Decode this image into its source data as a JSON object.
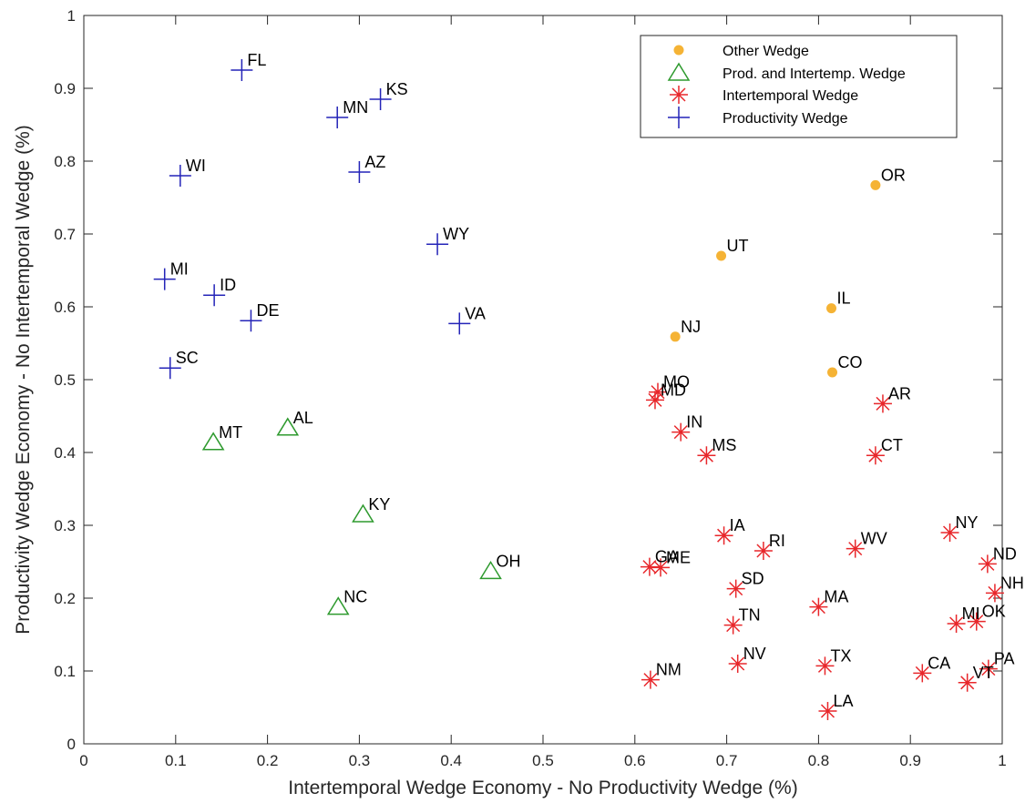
{
  "chart_data": {
    "type": "scatter",
    "xlabel": "Intertemporal Wedge Economy - No Productivity Wedge (%)",
    "ylabel": "Productivity Wedge Economy - No Intertemporal Wedge   (%)",
    "xlim": [
      0,
      1
    ],
    "ylim": [
      0,
      1
    ],
    "xticks": [
      0,
      0.1,
      0.2,
      0.3,
      0.4,
      0.5,
      0.6,
      0.7,
      0.8,
      0.9,
      1
    ],
    "yticks": [
      0,
      0.1,
      0.2,
      0.3,
      0.4,
      0.5,
      0.6,
      0.7,
      0.8,
      0.9,
      1
    ],
    "x_tick_labels": [
      "0",
      "0.1",
      "0.2",
      "0.3",
      "0.4",
      "0.5",
      "0.6",
      "0.7",
      "0.8",
      "0.9",
      "1"
    ],
    "y_tick_labels": [
      "0",
      "0.1",
      "0.2",
      "0.3",
      "0.4",
      "0.5",
      "0.6",
      "0.7",
      "0.8",
      "0.9",
      "1"
    ],
    "grid": false,
    "legend_position": "top-right",
    "series": [
      {
        "name": "Other Wedge",
        "marker": "dot",
        "color": "#f5b335",
        "points": [
          {
            "label": "OR",
            "x": 0.862,
            "y": 0.767
          },
          {
            "label": "UT",
            "x": 0.694,
            "y": 0.67
          },
          {
            "label": "IL",
            "x": 0.814,
            "y": 0.598
          },
          {
            "label": "NJ",
            "x": 0.644,
            "y": 0.559
          },
          {
            "label": "CO",
            "x": 0.815,
            "y": 0.51
          }
        ]
      },
      {
        "name": "Prod. and Intertemp. Wedge",
        "marker": "triangle",
        "color": "#2e9a2e",
        "points": [
          {
            "label": "AL",
            "x": 0.222,
            "y": 0.434
          },
          {
            "label": "MT",
            "x": 0.141,
            "y": 0.414
          },
          {
            "label": "KY",
            "x": 0.304,
            "y": 0.315
          },
          {
            "label": "OH",
            "x": 0.443,
            "y": 0.237
          },
          {
            "label": "NC",
            "x": 0.277,
            "y": 0.188
          }
        ]
      },
      {
        "name": "Intertemporal Wedge",
        "marker": "asterisk",
        "color": "#e8272b",
        "points": [
          {
            "label": "MO",
            "x": 0.625,
            "y": 0.483
          },
          {
            "label": "MD",
            "x": 0.622,
            "y": 0.472
          },
          {
            "label": "AR",
            "x": 0.87,
            "y": 0.467
          },
          {
            "label": "IN",
            "x": 0.65,
            "y": 0.428
          },
          {
            "label": "MS",
            "x": 0.678,
            "y": 0.396
          },
          {
            "label": "CT",
            "x": 0.862,
            "y": 0.396
          },
          {
            "label": "NY",
            "x": 0.943,
            "y": 0.29
          },
          {
            "label": "IA",
            "x": 0.697,
            "y": 0.286
          },
          {
            "label": "WV",
            "x": 0.84,
            "y": 0.268
          },
          {
            "label": "RI",
            "x": 0.74,
            "y": 0.265
          },
          {
            "label": "ND",
            "x": 0.984,
            "y": 0.247
          },
          {
            "label": "GA",
            "x": 0.616,
            "y": 0.243
          },
          {
            "label": "ME",
            "x": 0.628,
            "y": 0.242
          },
          {
            "label": "SD",
            "x": 0.71,
            "y": 0.213
          },
          {
            "label": "NH",
            "x": 0.992,
            "y": 0.207
          },
          {
            "label": "MA",
            "x": 0.8,
            "y": 0.188
          },
          {
            "label": "MI",
            "x": 0.95,
            "y": 0.165
          },
          {
            "label": "OK",
            "x": 0.972,
            "y": 0.168
          },
          {
            "label": "TN",
            "x": 0.707,
            "y": 0.163
          },
          {
            "label": "NV",
            "x": 0.712,
            "y": 0.11
          },
          {
            "label": "TX",
            "x": 0.807,
            "y": 0.107
          },
          {
            "label": "PA",
            "x": 0.985,
            "y": 0.103
          },
          {
            "label": "CA",
            "x": 0.913,
            "y": 0.097
          },
          {
            "label": "NM",
            "x": 0.617,
            "y": 0.088
          },
          {
            "label": "VT",
            "x": 0.962,
            "y": 0.084
          },
          {
            "label": "LA",
            "x": 0.81,
            "y": 0.045
          }
        ]
      },
      {
        "name": "Productivity Wedge",
        "marker": "plus",
        "color": "#2424b8",
        "points": [
          {
            "label": "FL",
            "x": 0.172,
            "y": 0.925
          },
          {
            "label": "KS",
            "x": 0.323,
            "y": 0.885
          },
          {
            "label": "MN",
            "x": 0.276,
            "y": 0.86
          },
          {
            "label": "AZ",
            "x": 0.3,
            "y": 0.785
          },
          {
            "label": "WI",
            "x": 0.105,
            "y": 0.78
          },
          {
            "label": "WY",
            "x": 0.385,
            "y": 0.686
          },
          {
            "label": "MI",
            "x": 0.088,
            "y": 0.638
          },
          {
            "label": "ID",
            "x": 0.142,
            "y": 0.616
          },
          {
            "label": "DE",
            "x": 0.182,
            "y": 0.581
          },
          {
            "label": "VA",
            "x": 0.409,
            "y": 0.577
          },
          {
            "label": "SC",
            "x": 0.094,
            "y": 0.516
          }
        ]
      }
    ]
  }
}
